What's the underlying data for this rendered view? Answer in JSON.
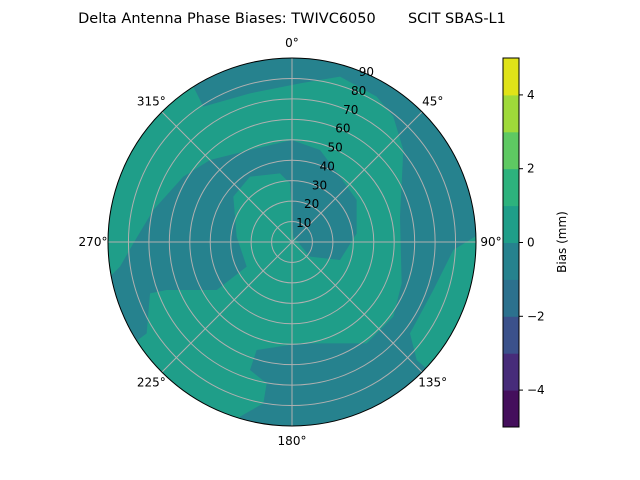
{
  "chart_data": {
    "type": "polar-contour",
    "title": "Delta Antenna Phase Biases: TWIVC6050       SCIT SBAS-L1",
    "theta_ticks": [
      "0°",
      "45°",
      "90°",
      "135°",
      "180°",
      "225°",
      "270°",
      "315°"
    ],
    "theta_values": [
      0,
      45,
      90,
      135,
      180,
      225,
      270,
      315
    ],
    "theta_zero": "top",
    "theta_direction": "clockwise",
    "r_ticks": [
      "10",
      "20",
      "30",
      "40",
      "50",
      "60",
      "70",
      "80",
      "90"
    ],
    "r_values": [
      10,
      20,
      30,
      40,
      50,
      60,
      70,
      80,
      90
    ],
    "rlim": [
      0,
      90
    ],
    "grid": true,
    "colorbar": {
      "label": "Bias (mm)",
      "levels": [
        -5,
        -4,
        -3,
        -2,
        -1,
        0,
        1,
        2,
        3,
        4,
        5
      ],
      "colors": [
        "#440f5c",
        "#472c7a",
        "#3b518b",
        "#2c718e",
        "#26828e",
        "#1f9e89",
        "#2db27d",
        "#5ec962",
        "#9fda3a",
        "#e0e318"
      ],
      "ticks": [
        -4,
        -2,
        0,
        2,
        4
      ],
      "tick_labels": [
        "−4",
        "−2",
        "0",
        "2",
        "4"
      ]
    },
    "field_colors": {
      "band_-1_0": "#26828e",
      "band_0_1": "#1f9e89"
    }
  }
}
